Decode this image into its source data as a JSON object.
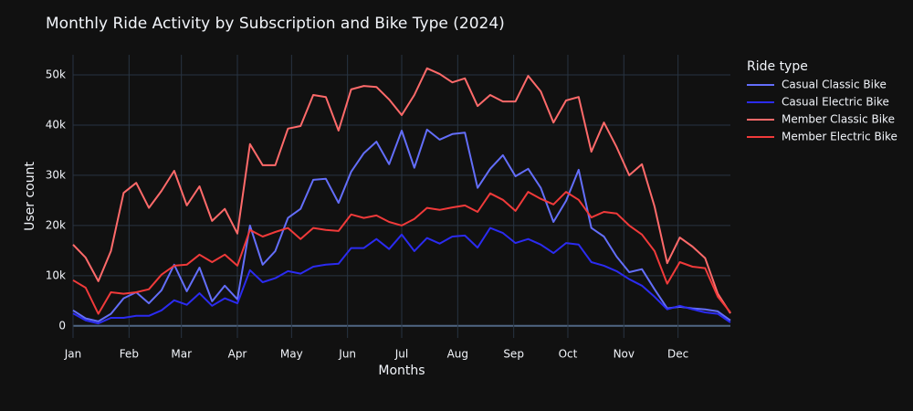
{
  "chart_data": {
    "type": "line",
    "title": "Monthly Ride Activity by Subscription and Bike Type (2024)",
    "x_label": "Months",
    "y_label": "User count",
    "legend_title": "Ride type",
    "legend_position": "right",
    "grid": true,
    "x": [
      0,
      7,
      14,
      21,
      28,
      35,
      42,
      49,
      56,
      63,
      70,
      77,
      84,
      91,
      98,
      105,
      112,
      119,
      126,
      133,
      140,
      147,
      154,
      161,
      168,
      175,
      182,
      189,
      196,
      203,
      210,
      217,
      224,
      231,
      238,
      245,
      252,
      259,
      266,
      273,
      280,
      287,
      294,
      301,
      308,
      315,
      322,
      329,
      336,
      343,
      350,
      357,
      364
    ],
    "xlim": [
      0,
      364
    ],
    "xticks": [
      {
        "value": 0,
        "label": "Jan"
      },
      {
        "value": 31,
        "label": "Feb"
      },
      {
        "value": 60,
        "label": "Mar"
      },
      {
        "value": 91,
        "label": "Apr"
      },
      {
        "value": 121,
        "label": "May"
      },
      {
        "value": 152,
        "label": "Jun"
      },
      {
        "value": 182,
        "label": "Jul"
      },
      {
        "value": 213,
        "label": "Aug"
      },
      {
        "value": 244,
        "label": "Sep"
      },
      {
        "value": 274,
        "label": "Oct"
      },
      {
        "value": 305,
        "label": "Nov"
      },
      {
        "value": 335,
        "label": "Dec"
      }
    ],
    "ylim": [
      -2400,
      54000
    ],
    "yticks": [
      0,
      {
        "value": 10000,
        "label": "10k"
      },
      {
        "value": 20000,
        "label": "20k"
      },
      {
        "value": 30000,
        "label": "30k"
      },
      {
        "value": 40000,
        "label": "40k"
      },
      {
        "value": 50000,
        "label": "50k"
      }
    ],
    "series": [
      {
        "name": "Casual Classic Bike",
        "color": "#636efa",
        "values": [
          3100,
          1500,
          900,
          2400,
          5500,
          6700,
          4500,
          7100,
          12200,
          6900,
          11600,
          4900,
          8000,
          5300,
          20000,
          12200,
          14900,
          21500,
          23300,
          29100,
          29300,
          24500,
          30700,
          34400,
          36700,
          32200,
          38900,
          31500,
          39100,
          37100,
          38200,
          38500,
          27500,
          31300,
          34000,
          29800,
          31300,
          27500,
          20700,
          24900,
          31100,
          19500,
          17800,
          13800,
          10700,
          11300,
          7300,
          3500,
          3800,
          3500,
          3300,
          2900,
          1100
        ]
      },
      {
        "name": "Casual Electric Bike",
        "color": "#2b2bf0",
        "values": [
          2500,
          1100,
          500,
          1600,
          1600,
          2000,
          2000,
          3100,
          5100,
          4200,
          6500,
          4000,
          5500,
          4500,
          11100,
          8700,
          9500,
          10900,
          10400,
          11800,
          12200,
          12400,
          15500,
          15500,
          17300,
          15300,
          18200,
          14900,
          17500,
          16400,
          17800,
          18000,
          15600,
          19500,
          18500,
          16500,
          17300,
          16200,
          14500,
          16500,
          16200,
          12700,
          12000,
          10900,
          9300,
          8000,
          5800,
          3300,
          4000,
          3300,
          2700,
          2400,
          700
        ]
      },
      {
        "name": "Member Classic Bike",
        "color": "#ff6a6a",
        "values": [
          16200,
          13600,
          8900,
          14900,
          26500,
          28500,
          23500,
          26900,
          30900,
          24000,
          27800,
          20900,
          23300,
          18400,
          36200,
          32000,
          32000,
          39300,
          39800,
          46000,
          45600,
          38900,
          47100,
          47800,
          47600,
          45100,
          42000,
          46000,
          51300,
          50200,
          48500,
          49300,
          43800,
          46000,
          44700,
          44700,
          49800,
          46700,
          40500,
          44900,
          45600,
          34700,
          40500,
          35600,
          30000,
          32200,
          23800,
          12500,
          17600,
          15800,
          13500,
          6400,
          2500
        ]
      },
      {
        "name": "Member Electric Bike",
        "color": "#f03a3a",
        "values": [
          9100,
          7600,
          2400,
          6700,
          6400,
          6700,
          7300,
          10200,
          12000,
          12200,
          14200,
          12700,
          14200,
          12000,
          19100,
          17800,
          18700,
          19500,
          17300,
          19500,
          19100,
          18900,
          22200,
          21500,
          22000,
          20700,
          20000,
          21300,
          23500,
          23100,
          23600,
          24000,
          22700,
          26400,
          25100,
          22900,
          26700,
          25300,
          24200,
          26700,
          25100,
          21600,
          22700,
          22400,
          20000,
          18200,
          14900,
          8400,
          12700,
          11800,
          11500,
          5800,
          2700
        ]
      }
    ]
  }
}
